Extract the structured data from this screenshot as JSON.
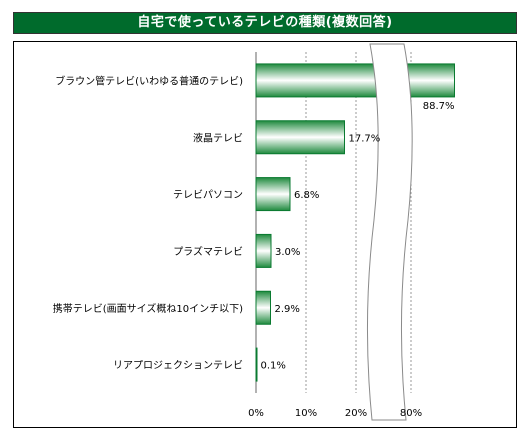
{
  "chart_data": {
    "type": "bar",
    "orientation": "horizontal",
    "title": "自宅で使っているテレビの種類(複数回答)",
    "categories": [
      "ブラウン管テレビ(いわゆる普通のテレビ)",
      "液晶テレビ",
      "テレビパソコン",
      "プラズマテレビ",
      "携帯テレビ(画面サイズ概ね10インチ以下)",
      "リアプロジェクションテレビ"
    ],
    "values": [
      88.7,
      17.7,
      6.8,
      3.0,
      2.9,
      0.1
    ],
    "value_labels": [
      "88.7%",
      "17.7%",
      "6.8%",
      "3.0%",
      "2.9%",
      "0.1%"
    ],
    "x_ticks": [
      "0%",
      "10%",
      "20%",
      "80%"
    ],
    "xlim": [
      0,
      90
    ],
    "axis_break": [
      27,
      76
    ],
    "grid": true,
    "bar_color": "#0a7a30"
  }
}
